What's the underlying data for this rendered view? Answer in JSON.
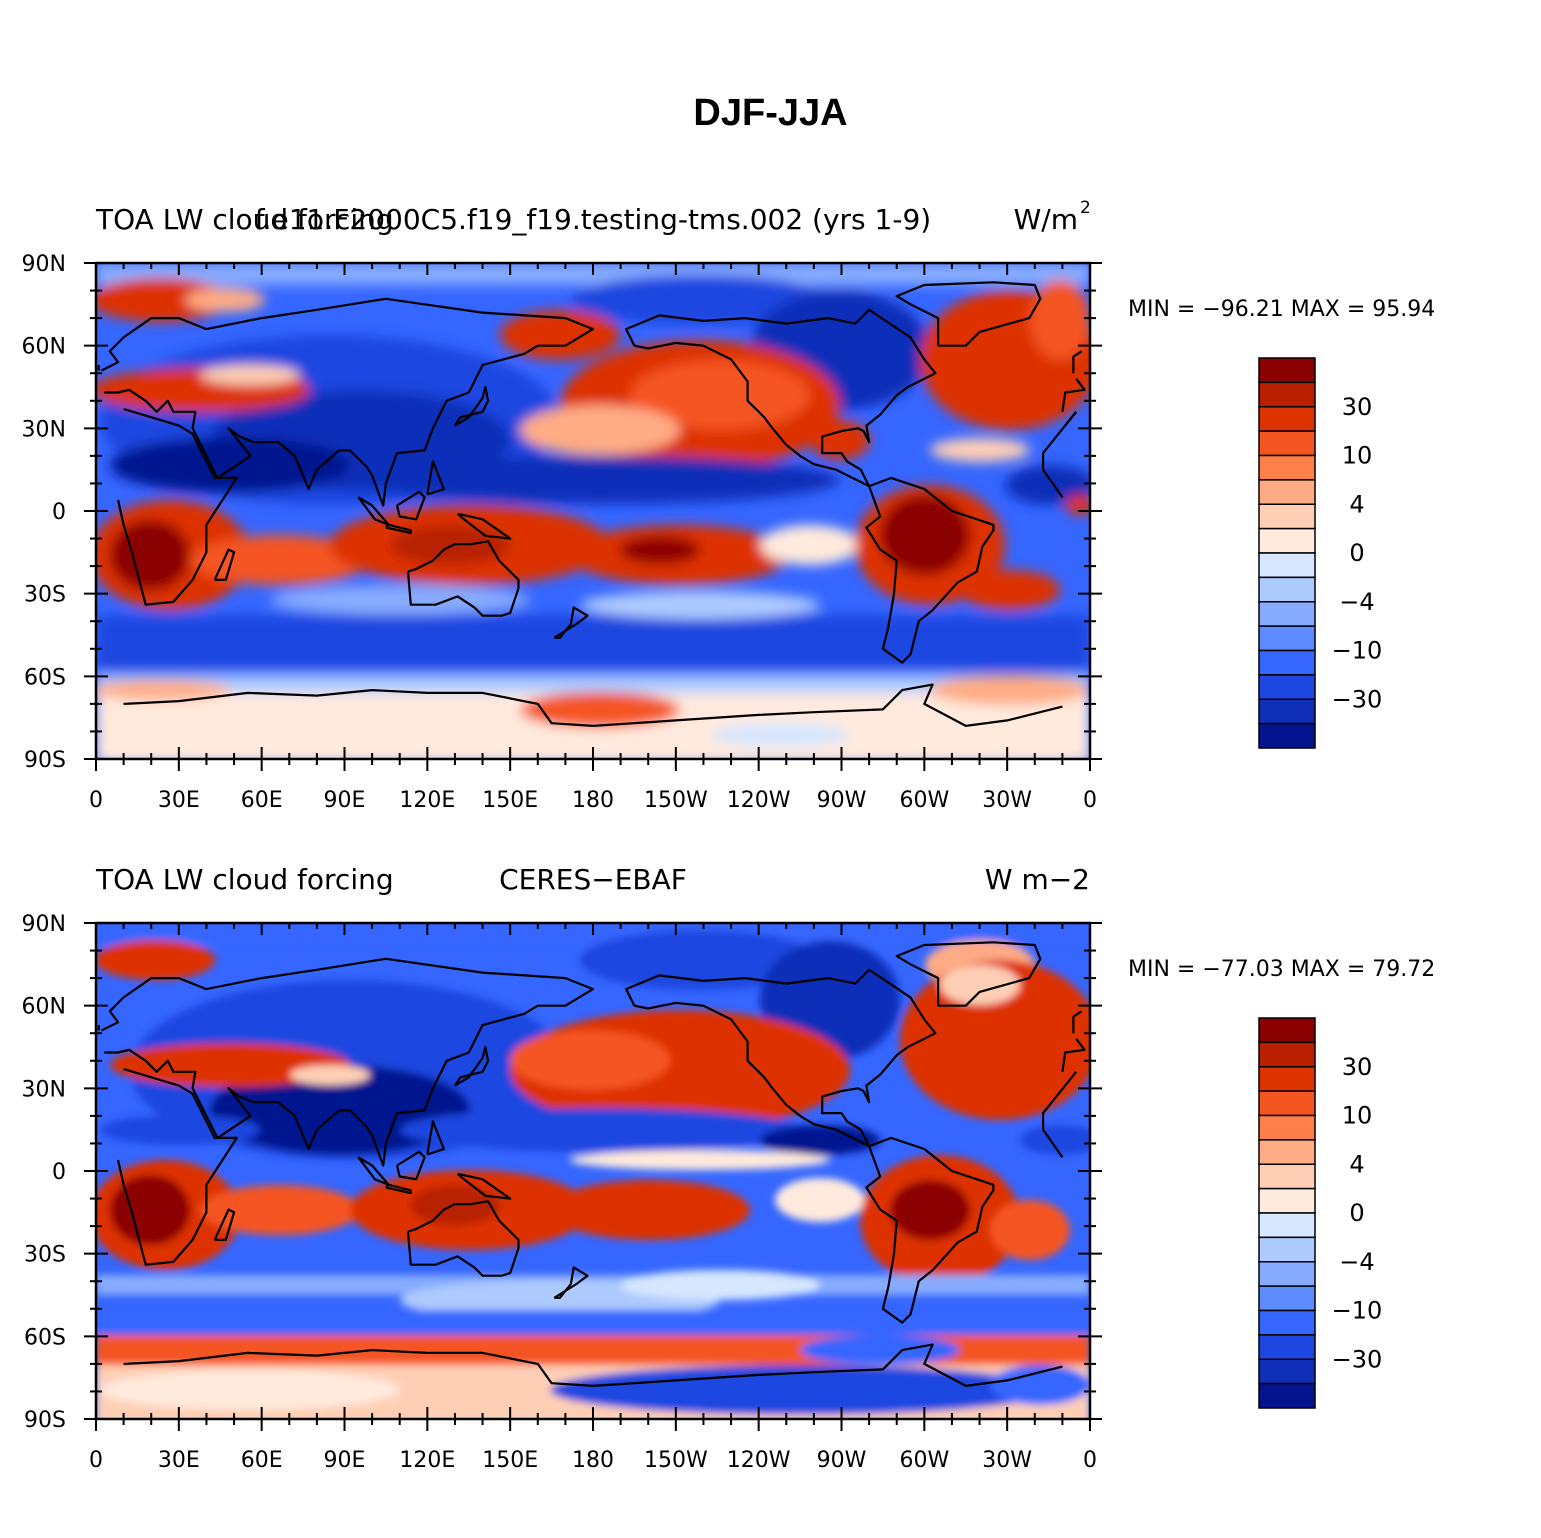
{
  "title": "DJF-JJA",
  "lon_ticks": [
    "0",
    "30E",
    "60E",
    "90E",
    "120E",
    "150E",
    "180",
    "150W",
    "120W",
    "90W",
    "60W",
    "30W",
    "0"
  ],
  "lat_ticks": [
    "90N",
    "60N",
    "30N",
    "0",
    "30S",
    "60S",
    "90S"
  ],
  "colorbar": {
    "colors": [
      "#8b0000",
      "#b82000",
      "#dd3300",
      "#f55520",
      "#ff7f4a",
      "#ffac85",
      "#ffcfb5",
      "#ffeadd",
      "#d6e7ff",
      "#aecbff",
      "#87acff",
      "#5c8cff",
      "#3566ff",
      "#1d47e0",
      "#0f2fb8",
      "#04148f"
    ],
    "labels": [
      "30",
      "10",
      "4",
      "0",
      "−4",
      "−10",
      "−30"
    ]
  },
  "panels": [
    {
      "left_string": "TOA LW cloud forcing",
      "center_string": "f.e11.F2000C5.f19_f19.testing-tms.002 (yrs 1-9)",
      "right_string": "W/m",
      "right_superscript": "2",
      "stats": "MIN = −96.21  MAX =   95.94"
    },
    {
      "left_string": "TOA LW cloud forcing",
      "center_string": "CERES−EBAF",
      "right_string": "W m−2",
      "right_superscript": "",
      "stats": "MIN = −77.03  MAX =   79.72"
    }
  ]
}
